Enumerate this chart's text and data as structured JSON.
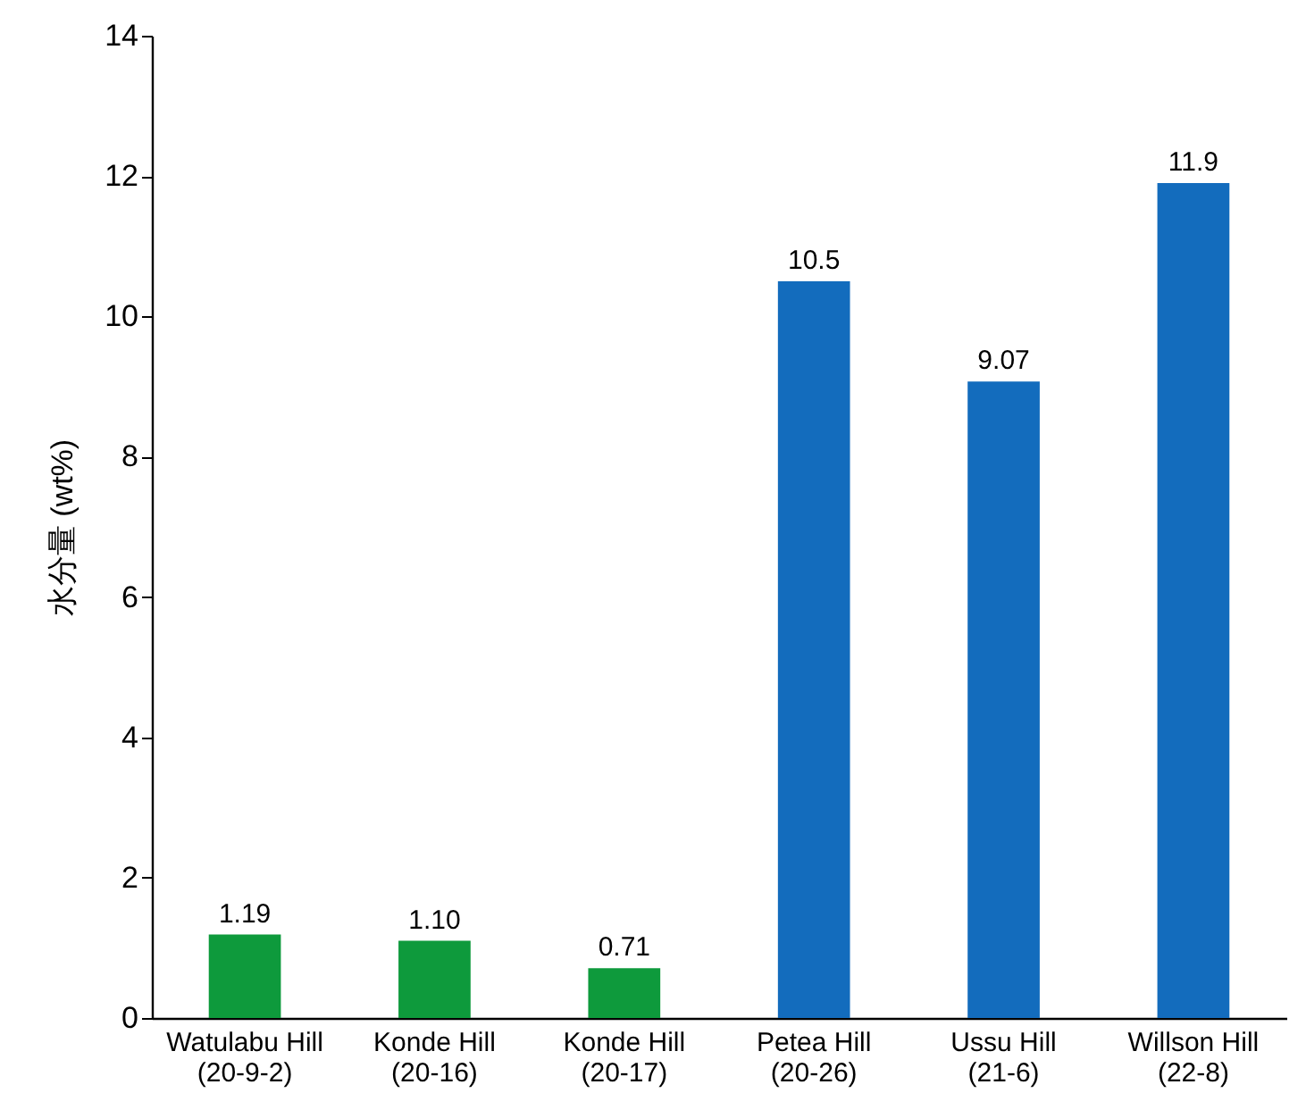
{
  "chart_data": {
    "type": "bar",
    "ylabel": "水分量 (wt%)",
    "categories": [
      "Watulabu Hill\n(20-9-2)",
      "Konde Hill\n(20-16)",
      "Konde Hill\n(20-17)",
      "Petea Hill\n(20-26)",
      "Ussu Hill\n(21-6)",
      "Willson Hill\n(22-8)"
    ],
    "values": [
      1.19,
      1.1,
      0.71,
      10.5,
      9.07,
      11.9
    ],
    "value_labels": [
      "1.19",
      "1.10",
      "0.71",
      "10.5",
      "9.07",
      "11.9"
    ],
    "colors": [
      "#0e9a3c",
      "#0e9a3c",
      "#0e9a3c",
      "#136cbd",
      "#136cbd",
      "#136cbd"
    ],
    "ylim": [
      0,
      14
    ],
    "yticks": [
      0,
      2,
      4,
      6,
      8,
      10,
      12,
      14
    ],
    "grid": false,
    "legend": false
  }
}
